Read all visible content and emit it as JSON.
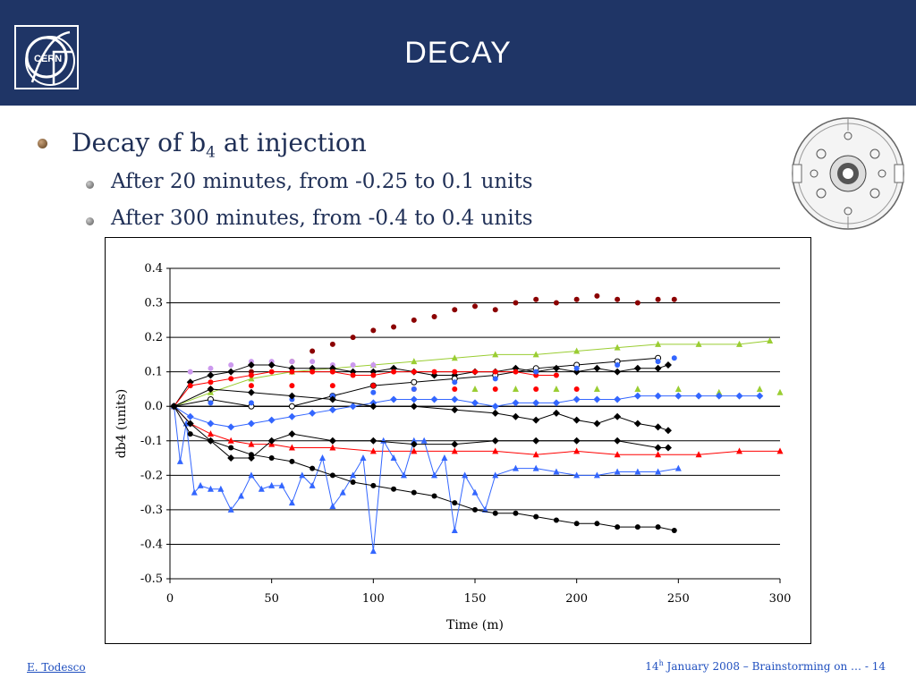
{
  "slide": {
    "title": "DECAY",
    "bullet1": "Decay of b",
    "bullet1_sub": "4",
    "bullet1_tail": " at injection",
    "bullet2": "After 20 minutes, from -0.25 to 0.1 units",
    "bullet3": "After 300 minutes, from -0.4 to 0.4 units",
    "logo_text": "CERN"
  },
  "footer": {
    "author": "E. Todesco",
    "date_day": "14",
    "date_sup": "h",
    "date_rest": " January 2008 – Brainstorming on  …  - 14"
  },
  "chart_data": {
    "type": "scatter",
    "xlabel": "Time (m)",
    "ylabel": "db4 (units)",
    "xlim": [
      0,
      300
    ],
    "ylim": [
      -0.5,
      0.4
    ],
    "xticks": [
      "0",
      "50",
      "100",
      "150",
      "200",
      "250",
      "300"
    ],
    "yticks": [
      "0.4",
      "0.3",
      "0.2",
      "0.1",
      "0.0",
      "-0.1",
      "-0.2",
      "-0.3",
      "-0.4",
      "-0.5"
    ],
    "grid": "horizontal",
    "series": [
      {
        "color": "#8b0000",
        "marker": "circle",
        "line": false,
        "x": [
          2,
          20,
          40,
          60,
          70,
          80,
          90,
          100,
          110,
          120,
          130,
          140,
          150,
          160,
          170,
          180,
          190,
          200,
          210,
          220,
          230,
          240,
          248
        ],
        "y": [
          0.0,
          0.05,
          0.1,
          0.13,
          0.16,
          0.18,
          0.2,
          0.22,
          0.23,
          0.25,
          0.26,
          0.28,
          0.29,
          0.28,
          0.3,
          0.31,
          0.3,
          0.31,
          0.32,
          0.31,
          0.3,
          0.31,
          0.31
        ]
      },
      {
        "color": "#9acd32",
        "marker": "triangle",
        "line": true,
        "x": [
          2,
          20,
          40,
          60,
          80,
          100,
          120,
          140,
          160,
          180,
          200,
          220,
          240,
          260,
          280,
          295
        ],
        "y": [
          0.0,
          0.04,
          0.08,
          0.1,
          0.11,
          0.12,
          0.13,
          0.14,
          0.15,
          0.15,
          0.16,
          0.17,
          0.18,
          0.18,
          0.18,
          0.19
        ]
      },
      {
        "color": "#9acd32",
        "marker": "triangle",
        "line": false,
        "x": [
          150,
          170,
          190,
          210,
          230,
          250,
          270,
          290,
          300
        ],
        "y": [
          0.05,
          0.05,
          0.05,
          0.05,
          0.05,
          0.05,
          0.04,
          0.05,
          0.04
        ]
      },
      {
        "color": "#cc99ee",
        "marker": "circle",
        "line": false,
        "x": [
          2,
          10,
          20,
          30,
          40,
          50,
          60,
          70,
          80,
          90,
          100
        ],
        "y": [
          0.0,
          0.1,
          0.11,
          0.12,
          0.13,
          0.13,
          0.13,
          0.13,
          0.12,
          0.12,
          0.12
        ]
      },
      {
        "color": "#000000",
        "marker": "diamond",
        "line": true,
        "x": [
          2,
          10,
          20,
          30,
          40,
          50,
          60,
          70,
          80,
          90,
          100,
          110,
          120,
          130,
          140,
          150,
          160,
          170,
          180,
          190,
          200,
          210,
          220,
          230,
          240,
          245
        ],
        "y": [
          0.0,
          0.07,
          0.09,
          0.1,
          0.12,
          0.12,
          0.11,
          0.11,
          0.11,
          0.1,
          0.1,
          0.11,
          0.1,
          0.09,
          0.09,
          0.1,
          0.1,
          0.11,
          0.1,
          0.11,
          0.1,
          0.11,
          0.1,
          0.11,
          0.11,
          0.12
        ]
      },
      {
        "color": "#000000",
        "marker": "circle-open",
        "line": true,
        "x": [
          2,
          20,
          40,
          60,
          80,
          100,
          120,
          140,
          160,
          180,
          200,
          220,
          240
        ],
        "y": [
          0.0,
          0.02,
          0.0,
          0.0,
          0.03,
          0.06,
          0.07,
          0.08,
          0.09,
          0.11,
          0.12,
          0.13,
          0.14
        ]
      },
      {
        "color": "#ff0000",
        "marker": "circle",
        "line": true,
        "x": [
          2,
          10,
          20,
          30,
          40,
          50,
          60,
          70,
          80,
          90,
          100,
          110,
          120,
          130,
          140,
          150,
          160,
          170,
          180,
          190
        ],
        "y": [
          0.0,
          0.06,
          0.07,
          0.08,
          0.09,
          0.1,
          0.1,
          0.1,
          0.1,
          0.09,
          0.09,
          0.1,
          0.1,
          0.1,
          0.1,
          0.1,
          0.1,
          0.1,
          0.09,
          0.09
        ]
      },
      {
        "color": "#ff0000",
        "marker": "triangle",
        "line": true,
        "x": [
          2,
          10,
          20,
          30,
          40,
          50,
          60,
          80,
          100,
          120,
          140,
          160,
          180,
          200,
          220,
          240,
          260,
          280,
          300
        ],
        "y": [
          0.0,
          -0.05,
          -0.08,
          -0.1,
          -0.11,
          -0.11,
          -0.12,
          -0.12,
          -0.13,
          -0.13,
          -0.13,
          -0.13,
          -0.14,
          -0.13,
          -0.14,
          -0.14,
          -0.14,
          -0.13,
          -0.13
        ]
      },
      {
        "color": "#ff0000",
        "marker": "circle",
        "line": false,
        "x": [
          2,
          20,
          40,
          60,
          80,
          100,
          120,
          140,
          160,
          180,
          200
        ],
        "y": [
          0.0,
          0.05,
          0.06,
          0.06,
          0.06,
          0.06,
          0.05,
          0.05,
          0.05,
          0.05,
          0.05
        ]
      },
      {
        "color": "#3366ff",
        "marker": "diamond",
        "line": true,
        "x": [
          2,
          10,
          20,
          30,
          40,
          50,
          60,
          70,
          80,
          90,
          100,
          110,
          120,
          130,
          140,
          150,
          160,
          170,
          180,
          190,
          200,
          210,
          220,
          230,
          240,
          250,
          260,
          270,
          280,
          290
        ],
        "y": [
          0.0,
          -0.03,
          -0.05,
          -0.06,
          -0.05,
          -0.04,
          -0.03,
          -0.02,
          -0.01,
          0.0,
          0.01,
          0.02,
          0.02,
          0.02,
          0.02,
          0.01,
          0.0,
          0.01,
          0.01,
          0.01,
          0.02,
          0.02,
          0.02,
          0.03,
          0.03,
          0.03,
          0.03,
          0.03,
          0.03,
          0.03
        ]
      },
      {
        "color": "#3366ff",
        "marker": "circle",
        "line": false,
        "x": [
          2,
          20,
          40,
          60,
          80,
          100,
          120,
          140,
          160,
          180,
          200,
          220,
          240,
          248
        ],
        "y": [
          0.0,
          0.01,
          0.01,
          0.02,
          0.03,
          0.04,
          0.05,
          0.07,
          0.08,
          0.1,
          0.11,
          0.12,
          0.13,
          0.14
        ]
      },
      {
        "color": "#3366ff",
        "marker": "triangle",
        "line": true,
        "x": [
          2,
          5,
          8,
          12,
          15,
          20,
          25,
          30,
          35,
          40,
          45,
          50,
          55,
          60,
          65,
          70,
          75,
          80,
          85,
          90,
          95,
          100,
          105,
          110,
          115,
          120,
          125,
          130,
          135,
          140,
          145,
          150,
          155,
          160,
          170,
          180,
          190,
          200,
          210,
          220,
          230,
          240,
          250
        ],
        "y": [
          0.0,
          -0.16,
          -0.05,
          -0.25,
          -0.23,
          -0.24,
          -0.24,
          -0.3,
          -0.26,
          -0.2,
          -0.24,
          -0.23,
          -0.23,
          -0.28,
          -0.2,
          -0.23,
          -0.15,
          -0.29,
          -0.25,
          -0.2,
          -0.15,
          -0.42,
          -0.1,
          -0.15,
          -0.2,
          -0.1,
          -0.1,
          -0.2,
          -0.15,
          -0.36,
          -0.2,
          -0.25,
          -0.3,
          -0.2,
          -0.18,
          -0.18,
          -0.19,
          -0.2,
          -0.2,
          -0.19,
          -0.19,
          -0.19,
          -0.18
        ]
      },
      {
        "color": "#000000",
        "marker": "circle",
        "line": true,
        "x": [
          2,
          10,
          20,
          30,
          40,
          50,
          60,
          70,
          80,
          90,
          100,
          110,
          120,
          130,
          140,
          150,
          160,
          170,
          180,
          190,
          200,
          210,
          220,
          230,
          240,
          248
        ],
        "y": [
          0.0,
          -0.08,
          -0.1,
          -0.12,
          -0.14,
          -0.15,
          -0.16,
          -0.18,
          -0.2,
          -0.22,
          -0.23,
          -0.24,
          -0.25,
          -0.26,
          -0.28,
          -0.3,
          -0.31,
          -0.31,
          -0.32,
          -0.33,
          -0.34,
          -0.34,
          -0.35,
          -0.35,
          -0.35,
          -0.36
        ]
      },
      {
        "color": "#000000",
        "marker": "diamond",
        "line": true,
        "x": [
          2,
          10,
          20,
          30,
          40,
          50,
          60,
          80,
          100,
          120,
          140,
          160,
          180,
          200,
          220,
          240,
          245
        ],
        "y": [
          0.0,
          -0.05,
          -0.1,
          -0.15,
          -0.15,
          -0.1,
          -0.08,
          -0.1,
          -0.1,
          -0.11,
          -0.11,
          -0.1,
          -0.1,
          -0.1,
          -0.1,
          -0.12,
          -0.12
        ]
      },
      {
        "color": "#000000",
        "marker": "diamond",
        "line": true,
        "x": [
          2,
          20,
          40,
          60,
          80,
          100,
          120,
          140,
          160,
          170,
          180,
          190,
          200,
          210,
          220,
          230,
          240,
          245
        ],
        "y": [
          0.0,
          0.05,
          0.04,
          0.03,
          0.02,
          0.0,
          0.0,
          -0.01,
          -0.02,
          -0.03,
          -0.04,
          -0.02,
          -0.04,
          -0.05,
          -0.03,
          -0.05,
          -0.06,
          -0.07
        ]
      }
    ]
  }
}
